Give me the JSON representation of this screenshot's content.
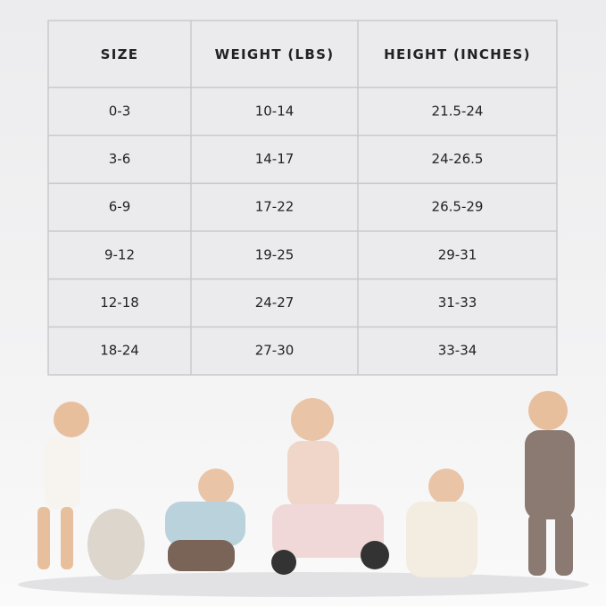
{
  "table": {
    "header": [
      "SIZE",
      "WEIGHT (LBS)",
      "HEIGHT (INCHES)"
    ],
    "rows": [
      [
        "0-3",
        "10-14",
        "21.5-24"
      ],
      [
        "3-6",
        "14-17",
        "24-26.5"
      ],
      [
        "6-9",
        "17-22",
        "26.5-29"
      ],
      [
        "9-12",
        "19-25",
        "29-31"
      ],
      [
        "12-18",
        "24-27",
        "31-33"
      ],
      [
        "18-24",
        "27-30",
        "33-34"
      ]
    ]
  }
}
